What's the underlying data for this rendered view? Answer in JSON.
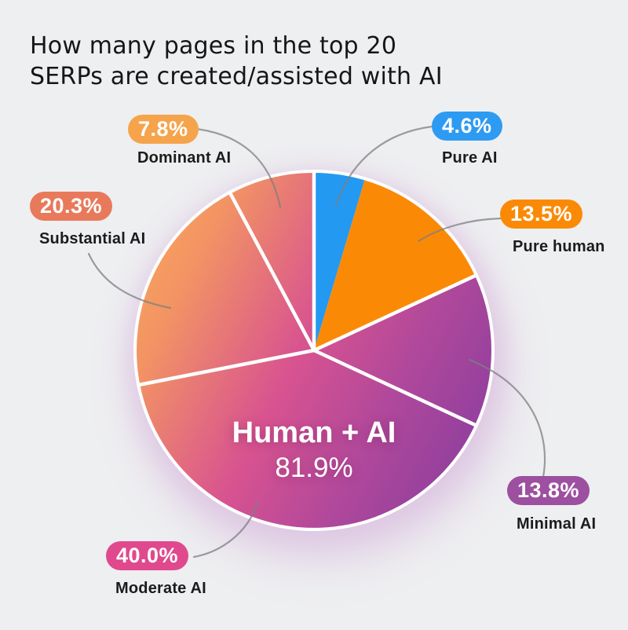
{
  "title": {
    "line1": "How many pages in the top 20",
    "line2": "SERPs are created/assisted with AI"
  },
  "colors": {
    "background": "#EEEFF1",
    "title_text": "#161616",
    "label_text": "#1C1C1C",
    "connector": "#7F7F7F",
    "divider": "#FFFFFF",
    "outer_ring": "#FFFFFF",
    "glow": "#CFA8D6"
  },
  "chart_data": {
    "type": "pie",
    "title": "How many pages in the top 20 SERPs are created/assisted with AI",
    "unit": "%",
    "start_angle": "12 o'clock",
    "direction": "clockwise",
    "slices": [
      {
        "label": "Pure AI",
        "value": 4.6,
        "value_label": "4.6%",
        "fill": "#2399F1",
        "badge_color": "#2E9BF2"
      },
      {
        "label": "Pure human",
        "value": 13.5,
        "value_label": "13.5%",
        "fill": "#FA8A06",
        "badge_color": "#FA8A06"
      },
      {
        "label": "Minimal AI",
        "value": 13.8,
        "value_label": "13.8%",
        "fill": "ai-gradient",
        "badge_color": "#9D4FA0"
      },
      {
        "label": "Moderate AI",
        "value": 40.0,
        "value_label": "40.0%",
        "fill": "ai-gradient",
        "badge_color": "#E0498D"
      },
      {
        "label": "Substantial AI",
        "value": 20.3,
        "value_label": "20.3%",
        "fill": "ai-gradient",
        "badge_color": "#E87A5B"
      },
      {
        "label": "Dominant AI",
        "value": 7.8,
        "value_label": "7.8%",
        "fill": "ai-gradient",
        "badge_color": "#F5A44C"
      }
    ],
    "ai_gradient": {
      "description": "shared gradient across the four Human+AI slices, orange at top-left to purple at right",
      "stops": [
        {
          "offset": 0,
          "color": "#FAA75B"
        },
        {
          "offset": 0.18,
          "color": "#F29364"
        },
        {
          "offset": 0.5,
          "color": "#D85390"
        },
        {
          "offset": 0.75,
          "color": "#B0489B"
        },
        {
          "offset": 1,
          "color": "#8F3F9E"
        }
      ]
    },
    "center_label": {
      "text": "Human + AI",
      "value_label": "81.9%"
    }
  }
}
